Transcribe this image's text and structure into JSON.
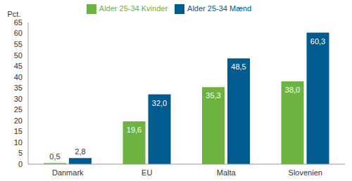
{
  "chart_data": {
    "type": "bar",
    "y_label": "Pct.",
    "categories": [
      "Danmark",
      "EU",
      "Malta",
      "Slovenien"
    ],
    "series": [
      {
        "name": "Alder 25-34 Kvinder",
        "color": "#6cb33f",
        "values": [
          0.5,
          19.6,
          35.3,
          38.0
        ],
        "value_labels": [
          "0,5",
          "19,6",
          "35,3",
          "38,0"
        ]
      },
      {
        "name": "Alder 25-34 Mænd",
        "color": "#005b8e",
        "values": [
          2.8,
          32.0,
          48.5,
          60.3
        ],
        "value_labels": [
          "2,8",
          "32,0",
          "48,5",
          "60,3"
        ]
      }
    ],
    "ylim": [
      0,
      65
    ],
    "yticks": [
      0,
      5,
      10,
      15,
      20,
      25,
      30,
      35,
      40,
      45,
      50,
      55,
      60,
      65
    ],
    "grid": false,
    "legend": "top",
    "data_labels": true
  }
}
